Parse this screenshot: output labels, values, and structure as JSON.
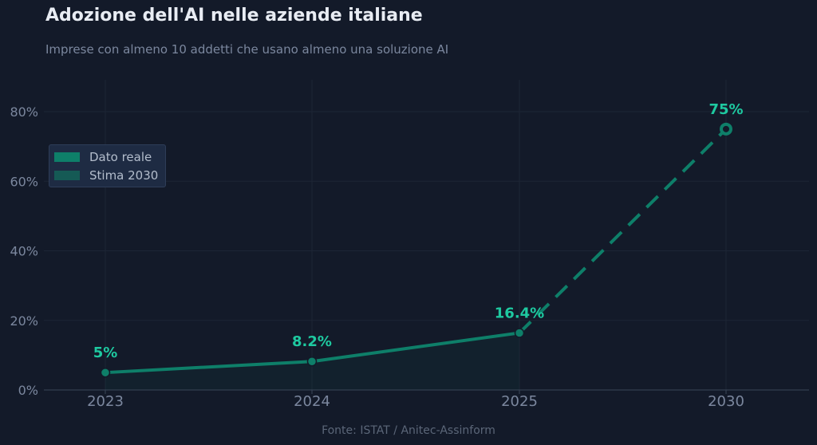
{
  "title": "Adozione dell'AI nelle aziende italiane",
  "subtitle": "Imprese con almeno 10 addetti che usano almeno una soluzione AI",
  "source": "Fonte: ISTAT / Anitec-Assinform",
  "colors": {
    "background": "#131a29",
    "accent": "#0e7f69",
    "label": "#1ec9a0",
    "estimate_swatch": "#155a55",
    "grid": "#1d2535",
    "tick": "#7b879e"
  },
  "chart_data": {
    "type": "line",
    "title": "Adozione dell'AI nelle aziende italiane",
    "subtitle": "Imprese con almeno 10 addetti che usano almeno una soluzione AI",
    "xlabel": "",
    "ylabel": "",
    "categories": [
      "2023",
      "2024",
      "2025",
      "2030"
    ],
    "ylim": [
      0,
      80
    ],
    "yticks": [
      0,
      20,
      40,
      60,
      80
    ],
    "ytick_labels": [
      "0%",
      "20%",
      "40%",
      "60%",
      "80%"
    ],
    "grid": true,
    "legend_position": "upper-left",
    "series": [
      {
        "name": "Dato reale",
        "style": "solid",
        "x": [
          "2023",
          "2024",
          "2025"
        ],
        "values": [
          5,
          8.2,
          16.4
        ],
        "labels": [
          "5%",
          "8.2%",
          "16.4%"
        ]
      },
      {
        "name": "Stima 2030",
        "style": "dashed",
        "x": [
          "2025",
          "2030"
        ],
        "values": [
          16.4,
          75
        ],
        "labels": [
          "",
          "75%"
        ]
      }
    ]
  }
}
